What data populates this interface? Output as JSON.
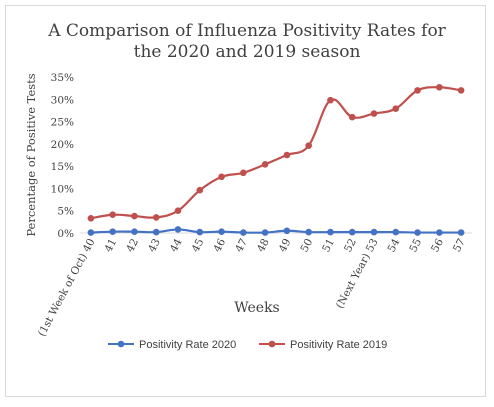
{
  "chart_data": {
    "type": "line",
    "title_lines": [
      "A Comparison of Influenza Positivity Rates for",
      "the 2020 and 2019 season"
    ],
    "xlabel": "Weeks",
    "ylabel": "Percentage of Positive Tests",
    "categories": [
      "(1st Week of Oct) 40",
      "41",
      "42",
      "43",
      "44",
      "45",
      "46",
      "47",
      "48",
      "49",
      "50",
      "51",
      "52",
      "(Next Year) 53",
      "54",
      "55",
      "56",
      "57"
    ],
    "y_ticks": [
      "0%",
      "5%",
      "10%",
      "15%",
      "20%",
      "25%",
      "30%",
      "35%"
    ],
    "ylim": [
      0,
      35
    ],
    "grid": false,
    "legend_position": "bottom",
    "series": [
      {
        "name": "Positivity Rate 2020",
        "color": "#4472c4",
        "values": [
          0.1,
          0.3,
          0.3,
          0.2,
          0.8,
          0.2,
          0.3,
          0.1,
          0.1,
          0.5,
          0.2,
          0.2,
          0.2,
          0.2,
          0.2,
          0.1,
          0.1,
          0.1
        ]
      },
      {
        "name": "Positivity Rate 2019",
        "color": "#c0504d",
        "values": [
          3.3,
          4.1,
          3.8,
          3.5,
          5.0,
          9.6,
          12.6,
          13.5,
          15.4,
          17.5,
          19.6,
          29.8,
          26.0,
          26.8,
          27.9,
          32.0,
          32.7,
          32.0
        ]
      }
    ]
  }
}
